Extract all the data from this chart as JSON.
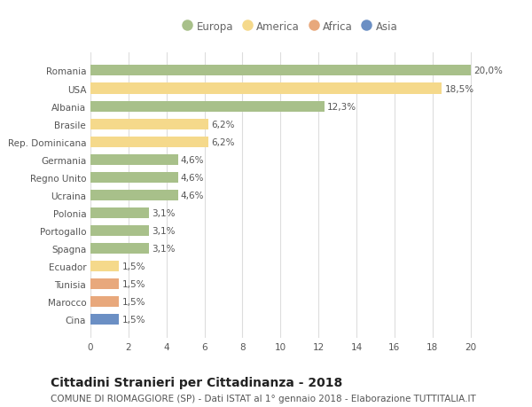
{
  "countries": [
    "Romania",
    "USA",
    "Albania",
    "Brasile",
    "Rep. Dominicana",
    "Germania",
    "Regno Unito",
    "Ucraina",
    "Polonia",
    "Portogallo",
    "Spagna",
    "Ecuador",
    "Tunisia",
    "Marocco",
    "Cina"
  ],
  "values": [
    20.0,
    18.5,
    12.3,
    6.2,
    6.2,
    4.6,
    4.6,
    4.6,
    3.1,
    3.1,
    3.1,
    1.5,
    1.5,
    1.5,
    1.5
  ],
  "labels": [
    "20,0%",
    "18,5%",
    "12,3%",
    "6,2%",
    "6,2%",
    "4,6%",
    "4,6%",
    "4,6%",
    "3,1%",
    "3,1%",
    "3,1%",
    "1,5%",
    "1,5%",
    "1,5%",
    "1,5%"
  ],
  "continents": [
    "Europa",
    "America",
    "Europa",
    "America",
    "America",
    "Europa",
    "Europa",
    "Europa",
    "Europa",
    "Europa",
    "Europa",
    "America",
    "Africa",
    "Africa",
    "Asia"
  ],
  "colors": {
    "Europa": "#a8c08a",
    "America": "#f5d98b",
    "Africa": "#e8a87c",
    "Asia": "#6b8fc4"
  },
  "legend_order": [
    "Europa",
    "America",
    "Africa",
    "Asia"
  ],
  "title": "Cittadini Stranieri per Cittadinanza - 2018",
  "subtitle": "COMUNE DI RIOMAGGIORE (SP) - Dati ISTAT al 1° gennaio 2018 - Elaborazione TUTTITALIA.IT",
  "xlim": [
    0,
    21
  ],
  "xticks": [
    0,
    2,
    4,
    6,
    8,
    10,
    12,
    14,
    16,
    18,
    20
  ],
  "background_color": "#ffffff",
  "grid_color": "#dddddd",
  "bar_height": 0.6,
  "title_fontsize": 10,
  "subtitle_fontsize": 7.5,
  "label_fontsize": 7.5,
  "tick_fontsize": 7.5,
  "legend_fontsize": 8.5
}
